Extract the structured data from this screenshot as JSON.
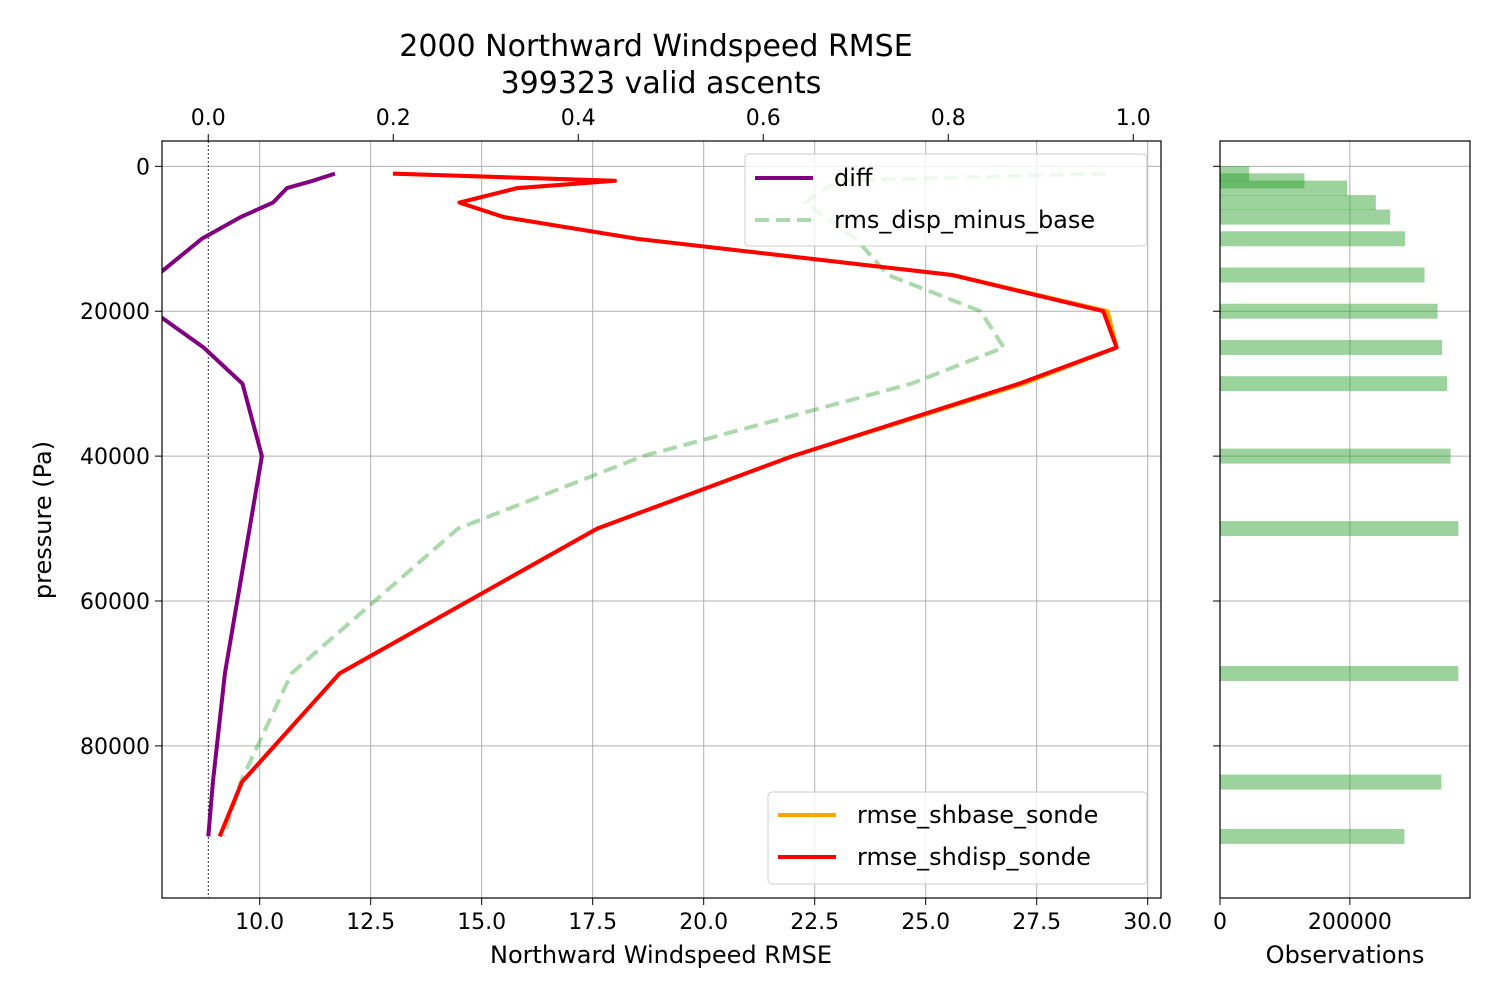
{
  "title": {
    "line1": "2000 Northward Windspeed RMSE",
    "line2": "399323 valid ascents"
  },
  "chart_data": [
    {
      "type": "line",
      "xlabel": "Northward Windspeed RMSE",
      "ylabel": "pressure (Pa)",
      "xlim": [
        7.8,
        30.3
      ],
      "ylim": [
        101000,
        -3500
      ],
      "x_ticks": [
        10.0,
        12.5,
        15.0,
        17.5,
        20.0,
        22.5,
        25.0,
        27.5,
        30.0
      ],
      "x_tick_labels": [
        "10.0",
        "12.5",
        "15.0",
        "17.5",
        "20.0",
        "22.5",
        "25.0",
        "27.5",
        "30.0"
      ],
      "y_ticks": [
        0,
        20000,
        40000,
        60000,
        80000
      ],
      "y_tick_labels": [
        "0",
        "20000",
        "40000",
        "60000",
        "80000"
      ],
      "grid": true,
      "legend": {
        "placement": "lower right"
      },
      "series": [
        {
          "name": "rmse_shbase_sonde",
          "color": "#ffa500",
          "style": "solid",
          "points": [
            [
              13.0,
              1000
            ],
            [
              18.0,
              2000
            ],
            [
              15.8,
              3000
            ],
            [
              14.5,
              5000
            ],
            [
              15.5,
              7000
            ],
            [
              18.5,
              10000
            ],
            [
              25.6,
              15000
            ],
            [
              29.1,
              20000
            ],
            [
              29.3,
              25000
            ],
            [
              27.2,
              30000
            ],
            [
              22.0,
              40000
            ],
            [
              17.6,
              50000
            ],
            [
              11.8,
              70000
            ],
            [
              9.6,
              85000
            ],
            [
              9.1,
              92500
            ]
          ]
        },
        {
          "name": "rmse_shdisp_sonde",
          "color": "#ff0000",
          "style": "solid",
          "points": [
            [
              13.0,
              1000
            ],
            [
              18.0,
              2000
            ],
            [
              15.8,
              3000
            ],
            [
              14.5,
              5000
            ],
            [
              15.5,
              7000
            ],
            [
              18.5,
              10000
            ],
            [
              25.6,
              15000
            ],
            [
              29.0,
              20000
            ],
            [
              29.3,
              25000
            ],
            [
              27.1,
              30000
            ],
            [
              22.0,
              40000
            ],
            [
              17.6,
              50000
            ],
            [
              11.8,
              70000
            ],
            [
              9.6,
              85000
            ],
            [
              9.1,
              92500
            ]
          ]
        }
      ]
    },
    {
      "type": "line",
      "xlim": [
        -0.05,
        1.03
      ],
      "x_ticks": [
        0.0,
        0.2,
        0.4,
        0.6,
        0.8,
        1.0
      ],
      "x_tick_labels": [
        "0.0",
        "0.2",
        "0.4",
        "0.6",
        "0.8",
        "1.0"
      ],
      "zero_reference_line": true,
      "legend": {
        "placement": "upper right"
      },
      "series": [
        {
          "name": "diff",
          "color": "#800080",
          "style": "solid",
          "points": [
            [
              0.137,
              1000
            ],
            [
              0.113,
              2000
            ],
            [
              0.085,
              3000
            ],
            [
              0.07,
              5000
            ],
            [
              0.035,
              7000
            ],
            [
              -0.007,
              10000
            ],
            [
              -0.055,
              15000
            ],
            [
              -0.06,
              20000
            ],
            [
              -0.005,
              25000
            ],
            [
              0.037,
              30000
            ],
            [
              0.058,
              40000
            ],
            [
              0.018,
              70000
            ],
            [
              0.005,
              85000
            ],
            [
              0.0,
              92500
            ]
          ]
        },
        {
          "name": "rms_disp_minus_base",
          "color": "#2ca02c",
          "style": "dashed",
          "opacity": 0.4,
          "points": [
            [
              0.97,
              1000
            ],
            [
              0.68,
              2000
            ],
            [
              0.645,
              5000
            ],
            [
              0.7,
              10000
            ],
            [
              0.735,
              15000
            ],
            [
              0.835,
              20000
            ],
            [
              0.86,
              25000
            ],
            [
              0.76,
              30000
            ],
            [
              0.47,
              40000
            ],
            [
              0.27,
              50000
            ],
            [
              0.09,
              70000
            ],
            [
              0.035,
              85000
            ],
            [
              0.017,
              92500
            ]
          ]
        }
      ]
    },
    {
      "type": "bar",
      "orientation": "horizontal",
      "xlabel": "Observations",
      "xlim": [
        0,
        385000
      ],
      "x_ticks": [
        0,
        200000
      ],
      "x_tick_labels": [
        "0",
        "200000"
      ],
      "ylim": [
        101000,
        -3500
      ],
      "grid": true,
      "bar_color": "#2ca02c",
      "opacity": 0.47,
      "bars": [
        {
          "pressure": 1000,
          "value": 45000
        },
        {
          "pressure": 2000,
          "value": 130000
        },
        {
          "pressure": 3000,
          "value": 196000
        },
        {
          "pressure": 5000,
          "value": 240000
        },
        {
          "pressure": 7000,
          "value": 262000
        },
        {
          "pressure": 10000,
          "value": 285000
        },
        {
          "pressure": 15000,
          "value": 315000
        },
        {
          "pressure": 20000,
          "value": 335000
        },
        {
          "pressure": 25000,
          "value": 342000
        },
        {
          "pressure": 30000,
          "value": 350000
        },
        {
          "pressure": 40000,
          "value": 355000
        },
        {
          "pressure": 50000,
          "value": 367000
        },
        {
          "pressure": 70000,
          "value": 367000
        },
        {
          "pressure": 85000,
          "value": 341000
        },
        {
          "pressure": 92500,
          "value": 284000
        }
      ]
    }
  ]
}
